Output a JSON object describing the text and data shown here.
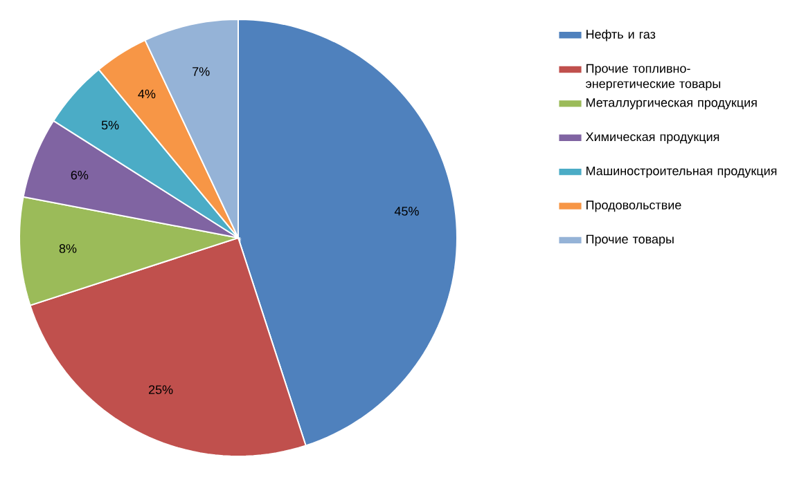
{
  "chart_data": {
    "type": "pie",
    "categories": [
      "Нефть и газ",
      "Прочие топливно-энергетические товары",
      "Металлургическая продукция",
      "Химическая продукция",
      "Машиностроительная продукция",
      "Продовольствие",
      "Прочие товары"
    ],
    "values": [
      45,
      25,
      8,
      6,
      5,
      4,
      7
    ],
    "colors": [
      "#4f81bd",
      "#c0504d",
      "#9bbb59",
      "#8064a2",
      "#4bacc6",
      "#f79646",
      "#95b3d7"
    ],
    "value_labels": [
      "45%",
      "25%",
      "8%",
      "6%",
      "5%",
      "4%",
      "7%"
    ],
    "legend": "right"
  }
}
